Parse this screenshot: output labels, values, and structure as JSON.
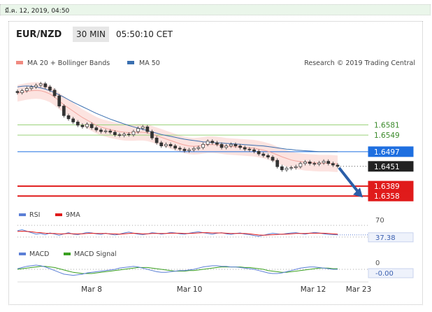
{
  "top_bar": {
    "timestamp": "มี.ค. 12, 2019, 04:50"
  },
  "header": {
    "symbol": "EUR/NZD",
    "timeframe": "30 MIN",
    "clock": "05:50:10 CET"
  },
  "legend": {
    "ma20": "MA 20 + Bollinger Bands",
    "ma50": "MA 50",
    "credit": "Research © 2019 Trading Central",
    "colors": {
      "ma20": "#f08a80",
      "ma50": "#3a6fb0"
    }
  },
  "chart_data": [
    {
      "type": "line",
      "panel": "price",
      "x_labels": [
        "Mar 8",
        "Mar 10",
        "Mar 12",
        "Mar 23"
      ],
      "y_range": [
        1.633,
        1.674
      ],
      "levels": [
        {
          "value": 1.6581,
          "label": "1.6581",
          "kind": "resistance",
          "color": "#9ad27a"
        },
        {
          "value": 1.6549,
          "label": "1.6549",
          "kind": "resistance",
          "color": "#9ad27a"
        },
        {
          "value": 1.6497,
          "label": "1.6497",
          "kind": "ma50",
          "color": "#1e6fe0"
        },
        {
          "value": 1.6451,
          "label": "1.6451",
          "kind": "last",
          "color": "#222222"
        },
        {
          "value": 1.6389,
          "label": "1.6389",
          "kind": "target",
          "color": "#e01b1b"
        },
        {
          "value": 1.6358,
          "label": "1.6358",
          "kind": "target",
          "color": "#e01b1b"
        }
      ],
      "close": [
        1.6682,
        1.6688,
        1.6695,
        1.67,
        1.6705,
        1.671,
        1.67,
        1.669,
        1.6672,
        1.664,
        1.661,
        1.66,
        1.659,
        1.658,
        1.6575,
        1.6583,
        1.6572,
        1.6565,
        1.656,
        1.6562,
        1.6558,
        1.655,
        1.6548,
        1.6552,
        1.655,
        1.656,
        1.657,
        1.6575,
        1.656,
        1.654,
        1.6525,
        1.6515,
        1.652,
        1.6515,
        1.6508,
        1.6505,
        1.65,
        1.6503,
        1.6507,
        1.651,
        1.652,
        1.653,
        1.6525,
        1.652,
        1.651,
        1.6515,
        1.652,
        1.6515,
        1.651,
        1.6505,
        1.6503,
        1.6498,
        1.649,
        1.6485,
        1.648,
        1.647,
        1.645,
        1.644,
        1.6445,
        1.6447,
        1.645,
        1.646,
        1.6465,
        1.646,
        1.6458,
        1.6462,
        1.6467,
        1.646,
        1.6455,
        1.6451
      ],
      "ma50": [
        1.67,
        1.6702,
        1.6703,
        1.6702,
        1.67,
        1.6697,
        1.6693,
        1.6688,
        1.6682,
        1.6675,
        1.6668,
        1.666,
        1.6652,
        1.6645,
        1.6638,
        1.6631,
        1.6624,
        1.6617,
        1.6611,
        1.6605,
        1.6599,
        1.6594,
        1.6589,
        1.6584,
        1.6579,
        1.6575,
        1.6571,
        1.6567,
        1.6563,
        1.6559,
        1.6555,
        1.6551,
        1.6548,
        1.6545,
        1.6542,
        1.6539,
        1.6536,
        1.6534,
        1.6532,
        1.653,
        1.6528,
        1.6527,
        1.6526,
        1.6525,
        1.6524,
        1.6523,
        1.6522,
        1.6521,
        1.652,
        1.6519,
        1.6518,
        1.6517,
        1.6516,
        1.6515,
        1.6513,
        1.6511,
        1.6509,
        1.6507,
        1.6505,
        1.6504,
        1.6502,
        1.6501,
        1.65,
        1.6499,
        1.6498,
        1.6497,
        1.6497,
        1.6497,
        1.6497,
        1.6497
      ],
      "ma20": [
        1.668,
        1.6683,
        1.6686,
        1.6688,
        1.6689,
        1.6688,
        1.6684,
        1.6678,
        1.6668,
        1.6656,
        1.6644,
        1.6634,
        1.6624,
        1.6614,
        1.6604,
        1.6596,
        1.6588,
        1.658,
        1.6574,
        1.657,
        1.6566,
        1.6563,
        1.656,
        1.6558,
        1.6557,
        1.6557,
        1.6558,
        1.6558,
        1.6556,
        1.6552,
        1.6547,
        1.6542,
        1.6537,
        1.6532,
        1.6527,
        1.6522,
        1.6518,
        1.6515,
        1.6514,
        1.6515,
        1.6517,
        1.6519,
        1.6519,
        1.6518,
        1.6516,
        1.6514,
        1.6513,
        1.6512,
        1.6511,
        1.651,
        1.6509,
        1.6508,
        1.6505,
        1.6502,
        1.6498,
        1.6493,
        1.6487,
        1.6481,
        1.6476,
        1.6471,
        1.6468,
        1.6466,
        1.6464,
        1.6463,
        1.6462,
        1.6461,
        1.6461,
        1.6461,
        1.646,
        1.6459
      ],
      "forecast": {
        "from_value": 1.6451,
        "to_value": 1.6358
      }
    },
    {
      "type": "line",
      "panel": "rsi",
      "legend": [
        "RSI",
        "9MA"
      ],
      "colors": {
        "rsi": "#5b7fd6",
        "ma": "#e01b1b"
      },
      "levels": [
        70,
        30
      ],
      "level_labels": [
        "70"
      ],
      "last_value_label": "37.38",
      "rsi": [
        52,
        55,
        50,
        45,
        40,
        42,
        38,
        44,
        40,
        36,
        41,
        45,
        40,
        38,
        42,
        46,
        44,
        41,
        39,
        43,
        40,
        37,
        40,
        44,
        47,
        43,
        40,
        38,
        41,
        45,
        43,
        40,
        42,
        46,
        44,
        41,
        40,
        43,
        46,
        48,
        45,
        42,
        40,
        43,
        45,
        41,
        39,
        42,
        44,
        40,
        38,
        35,
        33,
        36,
        40,
        43,
        41,
        39,
        42,
        44,
        45,
        42,
        40,
        43,
        46,
        44,
        41,
        39,
        38,
        37.38
      ],
      "ma": [
        49,
        50,
        49,
        48,
        46,
        45,
        43,
        42,
        42,
        41,
        41,
        42,
        41,
        41,
        41,
        42,
        43,
        42,
        42,
        42,
        41,
        41,
        40,
        41,
        42,
        43,
        42,
        41,
        41,
        42,
        42,
        42,
        42,
        43,
        43,
        43,
        42,
        42,
        43,
        44,
        45,
        45,
        44,
        44,
        44,
        43,
        42,
        42,
        42,
        42,
        41,
        39,
        37,
        36,
        37,
        38,
        39,
        40,
        40,
        41,
        42,
        42,
        42,
        43,
        43,
        43,
        43,
        42,
        41,
        40
      ]
    },
    {
      "type": "line",
      "panel": "macd",
      "legend": [
        "MACD",
        "MACD Signal"
      ],
      "colors": {
        "macd": "#5b7fd6",
        "signal": "#3aa020"
      },
      "zero_label": "0",
      "last_value_label": "-0.00",
      "y_range": [
        -0.0014,
        0.0014
      ],
      "macd": [
        0.0001,
        0.0003,
        0.0005,
        0.0006,
        0.0007,
        0.0006,
        0.0004,
        0.0001,
        -0.0002,
        -0.0005,
        -0.0008,
        -0.0009,
        -0.001,
        -0.0009,
        -0.0008,
        -0.0006,
        -0.0005,
        -0.0004,
        -0.0003,
        -0.0002,
        -0.0001,
        0.0,
        0.0002,
        0.0003,
        0.0004,
        0.0005,
        0.0004,
        0.0002,
        0.0,
        -0.0002,
        -0.0004,
        -0.0005,
        -0.0005,
        -0.0004,
        -0.0003,
        -0.0002,
        -0.0002,
        -0.0001,
        0.0,
        0.0002,
        0.0004,
        0.0005,
        0.0006,
        0.0006,
        0.0005,
        0.0005,
        0.0004,
        0.0004,
        0.0003,
        0.0002,
        0.0001,
        0.0,
        -0.0002,
        -0.0004,
        -0.0006,
        -0.0007,
        -0.0007,
        -0.0006,
        -0.0004,
        -0.0002,
        0.0,
        0.0002,
        0.0003,
        0.0004,
        0.0004,
        0.0003,
        0.0002,
        0.0001,
        0.0,
        -0.0
      ],
      "signal": [
        0.0,
        0.0001,
        0.0002,
        0.0003,
        0.0004,
        0.0005,
        0.0005,
        0.0004,
        0.0003,
        0.0001,
        -0.0001,
        -0.0003,
        -0.0005,
        -0.0006,
        -0.0007,
        -0.0007,
        -0.0007,
        -0.0006,
        -0.0005,
        -0.0004,
        -0.0003,
        -0.0002,
        -0.0001,
        0.0,
        0.0001,
        0.0002,
        0.0003,
        0.0003,
        0.0003,
        0.0002,
        0.0001,
        0.0,
        -0.0001,
        -0.0002,
        -0.0003,
        -0.0003,
        -0.0003,
        -0.0002,
        -0.0002,
        -0.0001,
        0.0,
        0.0001,
        0.0002,
        0.0003,
        0.0004,
        0.0004,
        0.0004,
        0.0004,
        0.0004,
        0.0003,
        0.0003,
        0.0002,
        0.0001,
        0.0,
        -0.0002,
        -0.0003,
        -0.0004,
        -0.0005,
        -0.0005,
        -0.0004,
        -0.0003,
        -0.0002,
        -0.0001,
        0.0,
        0.0001,
        0.0002,
        0.0002,
        0.0002,
        0.0001,
        0.0001
      ]
    }
  ]
}
